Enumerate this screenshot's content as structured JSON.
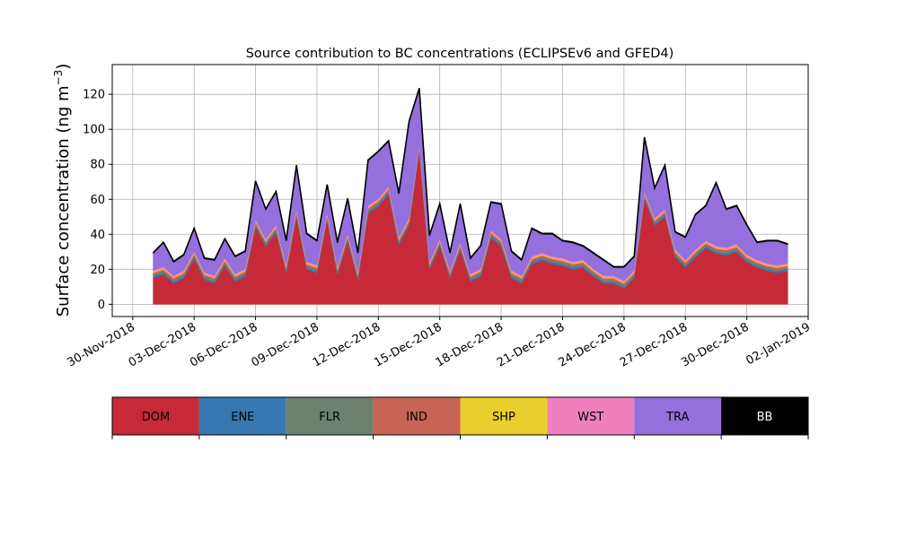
{
  "chart_data": {
    "type": "area",
    "stacked": true,
    "title": "Source contribution to BC concentrations (ECLIPSEv6 and GFED4)",
    "xlabel": "",
    "ylabel": "Surface concentration (ng m",
    "ylabel_sup": "−3",
    "ylabel_close": ")",
    "xlim": [
      "2018-11-29",
      "2019-01-02"
    ],
    "ylim": [
      -7,
      137
    ],
    "grid": true,
    "x_tick_labels": [
      "30-Nov-2018",
      "03-Dec-2018",
      "06-Dec-2018",
      "09-Dec-2018",
      "12-Dec-2018",
      "15-Dec-2018",
      "18-Dec-2018",
      "21-Dec-2018",
      "24-Dec-2018",
      "27-Dec-2018",
      "30-Dec-2018",
      "02-Jan-2019"
    ],
    "y_ticks": [
      0,
      20,
      40,
      60,
      80,
      100,
      120
    ],
    "x": [
      "2018-12-01",
      "2018-12-01 12:00",
      "2018-12-02",
      "2018-12-02 12:00",
      "2018-12-03",
      "2018-12-03 12:00",
      "2018-12-04",
      "2018-12-04 12:00",
      "2018-12-05",
      "2018-12-05 12:00",
      "2018-12-06",
      "2018-12-06 12:00",
      "2018-12-07",
      "2018-12-07 12:00",
      "2018-12-08",
      "2018-12-08 12:00",
      "2018-12-09",
      "2018-12-09 12:00",
      "2018-12-10",
      "2018-12-10 12:00",
      "2018-12-11",
      "2018-12-11 12:00",
      "2018-12-12",
      "2018-12-12 12:00",
      "2018-12-13",
      "2018-12-13 12:00",
      "2018-12-14",
      "2018-12-14 12:00",
      "2018-12-15",
      "2018-12-15 12:00",
      "2018-12-16",
      "2018-12-16 12:00",
      "2018-12-17",
      "2018-12-17 12:00",
      "2018-12-18",
      "2018-12-18 12:00",
      "2018-12-19",
      "2018-12-19 12:00",
      "2018-12-20",
      "2018-12-20 12:00",
      "2018-12-21",
      "2018-12-21 12:00",
      "2018-12-22",
      "2018-12-22 12:00",
      "2018-12-23",
      "2018-12-23 12:00",
      "2018-12-24",
      "2018-12-24 12:00",
      "2018-12-25",
      "2018-12-25 12:00",
      "2018-12-26",
      "2018-12-26 12:00",
      "2018-12-27",
      "2018-12-27 12:00",
      "2018-12-28",
      "2018-12-28 12:00",
      "2018-12-29",
      "2018-12-29 12:00",
      "2018-12-30",
      "2018-12-30 12:00",
      "2018-12-31",
      "2018-12-31 12:00",
      "2019-01-01"
    ],
    "series": [
      {
        "name": "DOM",
        "color": "#c62a38",
        "values": [
          15,
          17,
          12,
          15,
          26,
          14,
          12,
          22,
          13,
          16,
          44,
          33,
          41,
          18,
          50,
          20,
          18,
          48,
          17,
          36,
          14,
          52,
          56,
          63,
          34,
          45,
          88,
          20,
          33,
          15,
          31,
          13,
          16,
          38,
          33,
          15,
          12,
          23,
          25,
          23,
          22,
          20,
          21,
          16,
          12,
          12,
          9,
          15,
          60,
          45,
          50,
          27,
          21,
          27,
          32,
          29,
          28,
          30,
          24,
          21,
          19,
          18,
          19
        ]
      },
      {
        "name": "ENE",
        "color": "#3878b0",
        "values": [
          1,
          1,
          1,
          1,
          1,
          1,
          1,
          1,
          1,
          1,
          1,
          1,
          1,
          1,
          1,
          1,
          1,
          1,
          1,
          1,
          1,
          1,
          1,
          1,
          1,
          1,
          1,
          1,
          1,
          1,
          1,
          1,
          1,
          1,
          1,
          1,
          1,
          1,
          1,
          1,
          1,
          1,
          1,
          1,
          1,
          1,
          1,
          1,
          1,
          1,
          1,
          1,
          1,
          1,
          1,
          1,
          1,
          1,
          1,
          1,
          1,
          1,
          1
        ]
      },
      {
        "name": "FLR",
        "color": "#6e8070",
        "values": [
          1,
          1,
          1,
          1,
          1,
          1,
          1,
          1,
          1,
          1,
          1,
          1,
          1,
          1,
          1,
          1,
          1,
          1,
          1,
          1,
          1,
          1,
          1,
          1,
          1,
          1,
          1,
          1,
          1,
          1,
          1,
          1,
          1,
          1,
          1,
          1,
          1,
          1,
          1,
          1,
          1,
          1,
          1,
          1,
          1,
          1,
          1,
          1,
          1,
          1,
          1,
          1,
          1,
          1,
          1,
          1,
          1,
          1,
          1,
          1,
          1,
          1,
          1
        ]
      },
      {
        "name": "IND",
        "color": "#c86455",
        "values": [
          1,
          1,
          1,
          1,
          1,
          1,
          1,
          1,
          1,
          1,
          1,
          1,
          1,
          1,
          1,
          1,
          1,
          1,
          1,
          1,
          1,
          1,
          1,
          1,
          1,
          1,
          1,
          1,
          1,
          1,
          1,
          1,
          1,
          1,
          1,
          1,
          1,
          1,
          1,
          1,
          1,
          1,
          1,
          1,
          1,
          1,
          1,
          1,
          1,
          1,
          1,
          1,
          1,
          1,
          1,
          1,
          1,
          1,
          1,
          1,
          1,
          1,
          1
        ]
      },
      {
        "name": "SHP",
        "color": "#e8cf2e",
        "values": [
          0.5,
          0.5,
          0.5,
          0.5,
          0.5,
          0.5,
          0.5,
          0.5,
          0.5,
          0.5,
          0.5,
          0.5,
          0.5,
          0.5,
          0.5,
          0.5,
          0.5,
          0.5,
          0.5,
          0.5,
          0.5,
          0.5,
          0.5,
          0.5,
          0.5,
          0.5,
          0.5,
          0.5,
          0.5,
          0.5,
          0.5,
          0.5,
          0.5,
          0.5,
          0.5,
          0.5,
          0.5,
          0.5,
          0.5,
          0.5,
          0.5,
          0.5,
          0.5,
          0.5,
          0.5,
          0.5,
          0.5,
          0.5,
          0.5,
          0.5,
          0.5,
          0.5,
          0.5,
          0.5,
          0.5,
          0.5,
          0.5,
          0.5,
          0.5,
          0.5,
          0.5,
          0.5,
          0.5
        ]
      },
      {
        "name": "WST",
        "color": "#f07fbe",
        "values": [
          1,
          1,
          1,
          1,
          1,
          1,
          1,
          1,
          1,
          1,
          1,
          1,
          1,
          1,
          1,
          1,
          1,
          1,
          1,
          1,
          1,
          1,
          1,
          1,
          1,
          1,
          1,
          1,
          1,
          1,
          1,
          1,
          1,
          1,
          1,
          1,
          1,
          1,
          1,
          1,
          1,
          1,
          1,
          1,
          1,
          1,
          1,
          1,
          1,
          1,
          1,
          1,
          1,
          1,
          1,
          1,
          1,
          1,
          1,
          1,
          1,
          1,
          1
        ]
      },
      {
        "name": "TRA",
        "color": "#9370db",
        "values": [
          9.5,
          13.5,
          7.5,
          8.5,
          12.5,
          7.5,
          8.5,
          10.5,
          9.5,
          9.5,
          21.5,
          16.5,
          18.5,
          13.5,
          24.5,
          15.5,
          13.5,
          15.5,
          13.5,
          19.5,
          10.5,
          25.5,
          26.5,
          25.5,
          24.5,
          54.5,
          30.5,
          14.5,
          19.5,
          9.5,
          21.5,
          8.5,
          12.5,
          15.5,
          19.5,
          10.5,
          8.5,
          15.5,
          10.5,
          12.5,
          9.5,
          10.5,
          7.5,
          8.5,
          8.5,
          4.5,
          7.5,
          7.5,
          30.5,
          16.5,
          24.5,
          9.5,
          12.5,
          19.5,
          19.5,
          35.5,
          21.5,
          21.5,
          16.5,
          9.5,
          12.5,
          13.5,
          10.5
        ]
      },
      {
        "name": "BB",
        "color": "#000000",
        "values": [
          0.5,
          0.5,
          0.5,
          0.5,
          0.5,
          0.5,
          0.5,
          0.5,
          0.5,
          0.5,
          0.5,
          0.5,
          0.5,
          0.5,
          0.5,
          0.5,
          0.5,
          0.5,
          0.5,
          0.5,
          0.5,
          0.5,
          0.5,
          0.5,
          0.5,
          0.5,
          0.5,
          0.5,
          0.5,
          0.5,
          0.5,
          0.5,
          0.5,
          0.5,
          0.5,
          0.5,
          0.5,
          0.5,
          0.5,
          0.5,
          0.5,
          0.5,
          0.5,
          0.5,
          0.5,
          0.5,
          0.5,
          0.5,
          0.5,
          0.5,
          0.5,
          0.5,
          0.5,
          0.5,
          0.5,
          0.5,
          0.5,
          0.5,
          0.5,
          0.5,
          0.5,
          0.5,
          0.5
        ]
      }
    ],
    "legend": {
      "placement": "below",
      "style": "colorbar"
    }
  }
}
